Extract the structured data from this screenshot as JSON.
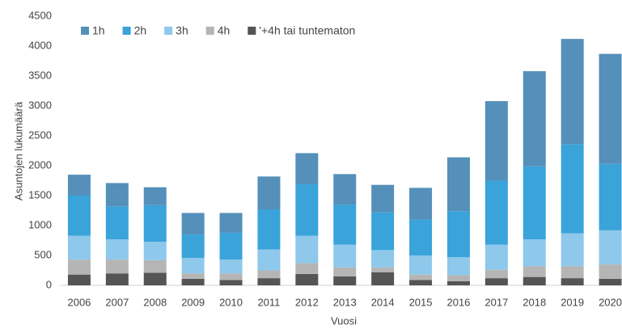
{
  "chart_data": {
    "type": "stacked_bar",
    "x_label": "Vuosi",
    "y_label": "Asuntojen lukumäärä",
    "categories": [
      "2006",
      "2007",
      "2008",
      "2009",
      "2010",
      "2011",
      "2012",
      "2013",
      "2014",
      "2015",
      "2016",
      "2017",
      "2018",
      "2019",
      "2020"
    ],
    "series": [
      {
        "name": "1h",
        "color": "#5490b9",
        "values": [
          350,
          390,
          300,
          360,
          330,
          550,
          520,
          510,
          460,
          530,
          900,
          1330,
          1590,
          1760,
          1840
        ]
      },
      {
        "name": "2h",
        "color": "#3aa3da",
        "values": [
          670,
          550,
          610,
          390,
          450,
          670,
          860,
          670,
          630,
          600,
          770,
          1070,
          1220,
          1490,
          1110
        ]
      },
      {
        "name": "3h",
        "color": "#8ec8ea",
        "values": [
          400,
          340,
          310,
          260,
          230,
          350,
          460,
          380,
          290,
          320,
          300,
          420,
          450,
          550,
          570
        ]
      },
      {
        "name": "4h",
        "color": "#b5b5b5",
        "values": [
          250,
          230,
          210,
          90,
          110,
          130,
          180,
          150,
          80,
          90,
          100,
          140,
          180,
          200,
          240
        ]
      },
      {
        "name": "'+4h tai tuntematon",
        "color": "#555555",
        "values": [
          180,
          200,
          210,
          110,
          90,
          120,
          190,
          150,
          220,
          90,
          70,
          120,
          140,
          120,
          110
        ]
      }
    ],
    "ylim": [
      0,
      4500
    ],
    "yticks": [
      0,
      500,
      1000,
      1500,
      2000,
      2500,
      3000,
      3500,
      4000,
      4500
    ],
    "grid": false,
    "legend": "top"
  }
}
